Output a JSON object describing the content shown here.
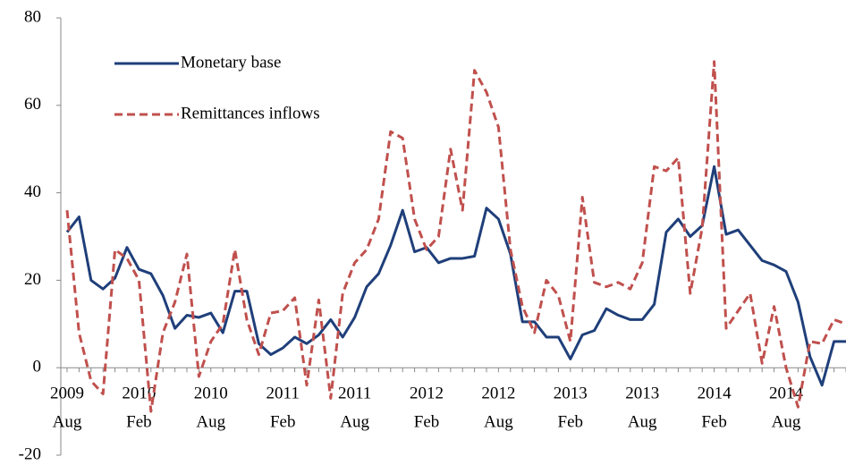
{
  "chart_data": {
    "type": "line",
    "categories": [
      [
        "2009",
        "Aug"
      ],
      null,
      null,
      null,
      null,
      null,
      [
        "2010",
        "Feb"
      ],
      null,
      null,
      null,
      null,
      null,
      [
        "2010",
        "Aug"
      ],
      null,
      null,
      null,
      null,
      null,
      [
        "2011",
        "Feb"
      ],
      null,
      null,
      null,
      null,
      null,
      [
        "2011",
        "Aug"
      ],
      null,
      null,
      null,
      null,
      null,
      [
        "2012",
        "Feb"
      ],
      null,
      null,
      null,
      null,
      null,
      [
        "2012",
        "Aug"
      ],
      null,
      null,
      null,
      null,
      null,
      [
        "2013",
        "Feb"
      ],
      null,
      null,
      null,
      null,
      null,
      [
        "2013",
        "Aug"
      ],
      null,
      null,
      null,
      null,
      null,
      [
        "2014",
        "Feb"
      ],
      null,
      null,
      null,
      null,
      null,
      [
        "2014",
        "Aug"
      ],
      null,
      null,
      null,
      null,
      null
    ],
    "series": [
      {
        "name": "Monetary base",
        "color": "#1f3f7a",
        "dash": false,
        "values": [
          31,
          34.5,
          20,
          18,
          20.5,
          27.5,
          22.5,
          21.5,
          16.5,
          9,
          12,
          11.5,
          12.5,
          8,
          17.5,
          17.5,
          5.5,
          3,
          4.5,
          7,
          5.5,
          7.5,
          11,
          7,
          11.5,
          18.5,
          21.5,
          28,
          36,
          26.5,
          27.5,
          24,
          25,
          25,
          25.5,
          36.5,
          34,
          26,
          10.5,
          10.5,
          7,
          7,
          2,
          7.5,
          8.5,
          13.5,
          12,
          11,
          11,
          14.5,
          31,
          34,
          30,
          32.5,
          46,
          30.5,
          31.5,
          28,
          24.5,
          23.5,
          22,
          15,
          2.5,
          -4,
          6,
          6
        ]
      },
      {
        "name": "Remittances inflows",
        "color": "#c0504d",
        "dash": true,
        "values": [
          36,
          8,
          -3,
          -6,
          27,
          25,
          20,
          -10,
          8,
          15,
          26,
          -2,
          6,
          10,
          27,
          11,
          3,
          12.5,
          13,
          16,
          -4,
          15.5,
          -7,
          17,
          24,
          27,
          34,
          54,
          52.5,
          34,
          27,
          30,
          50,
          36,
          68,
          63,
          55,
          27,
          14,
          8,
          20,
          16.5,
          6,
          39,
          19.5,
          18.5,
          19.5,
          18,
          24,
          46,
          45,
          48,
          17,
          32,
          70,
          9,
          13,
          17,
          1,
          14,
          0,
          -9,
          6,
          5.5,
          11,
          10
        ]
      }
    ],
    "ylim": [
      -20,
      80
    ],
    "yticks": [
      -20,
      0,
      20,
      40,
      60,
      80
    ],
    "legend": "upper left"
  }
}
